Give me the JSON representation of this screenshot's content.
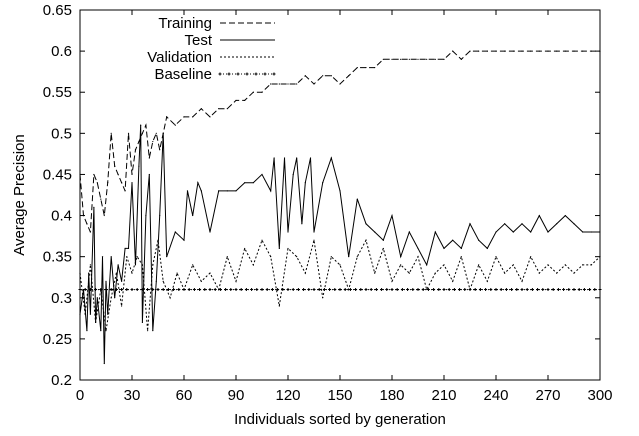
{
  "chart_data": {
    "type": "line",
    "title": "",
    "xlabel": "Individuals sorted by generation",
    "ylabel": "Average Precision",
    "xlim": [
      0,
      300
    ],
    "ylim": [
      0.2,
      0.65
    ],
    "xticks": [
      0,
      30,
      60,
      90,
      120,
      150,
      180,
      210,
      240,
      270,
      300
    ],
    "yticks": [
      0.2,
      0.25,
      0.3,
      0.35,
      0.4,
      0.45,
      0.5,
      0.55,
      0.6,
      0.65
    ],
    "xtick_labels": [
      "0",
      "30",
      "60",
      "90",
      "120",
      "150",
      "180",
      "210",
      "240",
      "270",
      "300"
    ],
    "ytick_labels": [
      "0.2",
      "0.25",
      "0.3",
      "0.35",
      "0.4",
      "0.45",
      "0.5",
      "0.55",
      "0.6",
      "0.65"
    ],
    "grid": false,
    "legend_position": "top-left",
    "series": [
      {
        "name": "Training",
        "style": "long-dash",
        "color": "#000000",
        "x": [
          0,
          2,
          4,
          6,
          8,
          10,
          12,
          14,
          16,
          18,
          20,
          22,
          24,
          26,
          28,
          30,
          32,
          34,
          36,
          38,
          40,
          42,
          44,
          46,
          48,
          50,
          55,
          60,
          65,
          70,
          75,
          80,
          85,
          90,
          95,
          100,
          105,
          110,
          115,
          120,
          125,
          130,
          135,
          140,
          145,
          150,
          155,
          160,
          165,
          170,
          175,
          180,
          185,
          190,
          195,
          200,
          205,
          210,
          215,
          220,
          225,
          230,
          235,
          240,
          245,
          250,
          255,
          260,
          265,
          270,
          275,
          280,
          285,
          290,
          295,
          300
        ],
        "y": [
          0.45,
          0.4,
          0.39,
          0.38,
          0.45,
          0.44,
          0.42,
          0.4,
          0.44,
          0.5,
          0.46,
          0.45,
          0.44,
          0.43,
          0.5,
          0.45,
          0.48,
          0.49,
          0.5,
          0.51,
          0.47,
          0.49,
          0.5,
          0.48,
          0.5,
          0.52,
          0.51,
          0.52,
          0.52,
          0.53,
          0.52,
          0.53,
          0.53,
          0.54,
          0.54,
          0.55,
          0.55,
          0.56,
          0.56,
          0.56,
          0.56,
          0.57,
          0.56,
          0.57,
          0.57,
          0.56,
          0.57,
          0.58,
          0.58,
          0.58,
          0.59,
          0.59,
          0.59,
          0.59,
          0.59,
          0.59,
          0.59,
          0.59,
          0.6,
          0.59,
          0.6,
          0.6,
          0.6,
          0.6,
          0.6,
          0.6,
          0.6,
          0.6,
          0.6,
          0.6,
          0.6,
          0.6,
          0.6,
          0.6,
          0.6,
          0.6
        ]
      },
      {
        "name": "Test",
        "style": "solid",
        "color": "#000000",
        "x": [
          0,
          2,
          4,
          5,
          6,
          8,
          9,
          10,
          12,
          13,
          14,
          15,
          16,
          18,
          20,
          22,
          24,
          26,
          28,
          30,
          32,
          34,
          35,
          36,
          38,
          40,
          42,
          44,
          46,
          48,
          50,
          55,
          60,
          62,
          65,
          68,
          70,
          75,
          80,
          85,
          90,
          95,
          100,
          105,
          110,
          112,
          115,
          118,
          120,
          123,
          125,
          128,
          130,
          133,
          135,
          140,
          145,
          150,
          155,
          160,
          165,
          170,
          175,
          180,
          185,
          190,
          195,
          200,
          205,
          210,
          215,
          220,
          225,
          230,
          235,
          240,
          245,
          250,
          255,
          260,
          265,
          270,
          275,
          280,
          285,
          290,
          295,
          300
        ],
        "y": [
          0.28,
          0.31,
          0.26,
          0.33,
          0.28,
          0.41,
          0.27,
          0.3,
          0.26,
          0.35,
          0.22,
          0.32,
          0.28,
          0.35,
          0.3,
          0.34,
          0.32,
          0.36,
          0.36,
          0.44,
          0.34,
          0.46,
          0.51,
          0.27,
          0.4,
          0.45,
          0.26,
          0.32,
          0.4,
          0.5,
          0.35,
          0.38,
          0.37,
          0.43,
          0.4,
          0.44,
          0.43,
          0.38,
          0.43,
          0.43,
          0.43,
          0.44,
          0.44,
          0.45,
          0.43,
          0.47,
          0.36,
          0.47,
          0.38,
          0.45,
          0.47,
          0.39,
          0.44,
          0.47,
          0.38,
          0.44,
          0.47,
          0.43,
          0.35,
          0.42,
          0.39,
          0.38,
          0.37,
          0.4,
          0.35,
          0.38,
          0.36,
          0.34,
          0.38,
          0.36,
          0.37,
          0.36,
          0.39,
          0.37,
          0.36,
          0.38,
          0.39,
          0.38,
          0.39,
          0.38,
          0.4,
          0.38,
          0.39,
          0.4,
          0.39,
          0.38,
          0.38,
          0.38
        ]
      },
      {
        "name": "Validation",
        "style": "short-dash",
        "color": "#000000",
        "x": [
          0,
          3,
          6,
          9,
          12,
          15,
          18,
          21,
          24,
          27,
          30,
          33,
          36,
          39,
          42,
          45,
          48,
          52,
          56,
          60,
          65,
          70,
          75,
          80,
          85,
          90,
          95,
          100,
          105,
          110,
          115,
          120,
          125,
          130,
          135,
          140,
          145,
          150,
          155,
          160,
          165,
          170,
          175,
          180,
          185,
          190,
          195,
          200,
          205,
          210,
          215,
          220,
          225,
          230,
          235,
          240,
          245,
          250,
          255,
          260,
          265,
          270,
          275,
          280,
          285,
          290,
          295,
          300
        ],
        "y": [
          0.33,
          0.28,
          0.34,
          0.27,
          0.31,
          0.26,
          0.3,
          0.33,
          0.29,
          0.35,
          0.33,
          0.35,
          0.34,
          0.26,
          0.34,
          0.37,
          0.32,
          0.3,
          0.33,
          0.31,
          0.34,
          0.32,
          0.33,
          0.31,
          0.35,
          0.32,
          0.36,
          0.34,
          0.37,
          0.35,
          0.29,
          0.36,
          0.35,
          0.33,
          0.37,
          0.3,
          0.35,
          0.34,
          0.31,
          0.35,
          0.37,
          0.33,
          0.36,
          0.32,
          0.34,
          0.33,
          0.35,
          0.31,
          0.33,
          0.34,
          0.32,
          0.35,
          0.31,
          0.34,
          0.32,
          0.35,
          0.33,
          0.34,
          0.32,
          0.35,
          0.33,
          0.34,
          0.33,
          0.34,
          0.33,
          0.34,
          0.34,
          0.35
        ]
      },
      {
        "name": "Baseline",
        "style": "dotted-markers",
        "color": "#000000",
        "x": [
          0,
          300
        ],
        "y": [
          0.31,
          0.31
        ]
      }
    ]
  }
}
